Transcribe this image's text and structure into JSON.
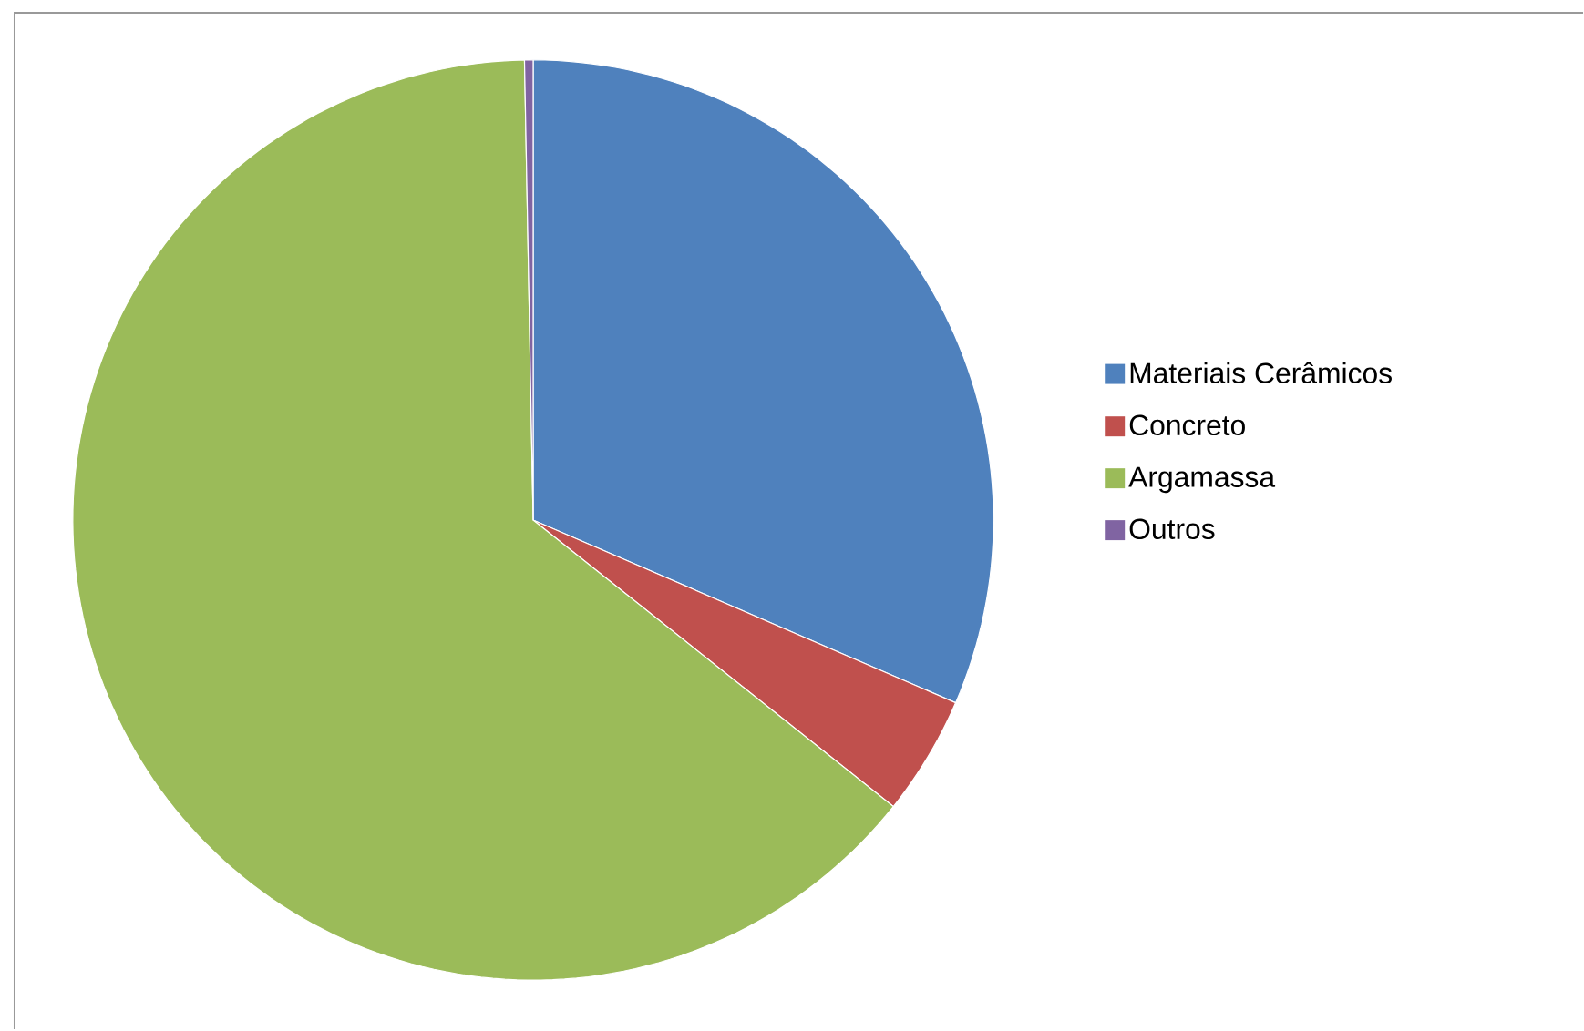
{
  "chart_data": {
    "type": "pie",
    "categories": [
      "Materiais Cerâmicos",
      "Concreto",
      "Argamassa",
      "Outros"
    ],
    "values": [
      31.5,
      4.2,
      64.0,
      0.3
    ],
    "colors": [
      "#4f81bd",
      "#c0504d",
      "#9bbb59",
      "#8064a2"
    ],
    "legend": "right"
  }
}
